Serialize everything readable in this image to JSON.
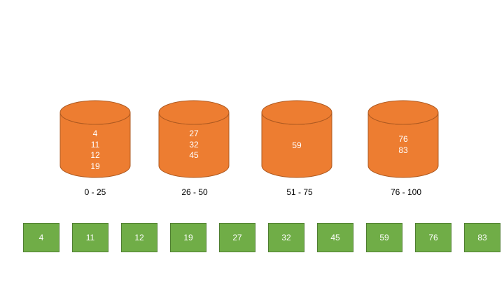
{
  "buckets": [
    {
      "range": "0 - 25",
      "values": [
        "4",
        "11",
        "12",
        "19"
      ]
    },
    {
      "range": "26 - 50",
      "values": [
        "27",
        "32",
        "45"
      ]
    },
    {
      "range": "51 - 75",
      "values": [
        "59"
      ]
    },
    {
      "range": "76 - 100",
      "values": [
        "76",
        "83"
      ]
    }
  ],
  "sorted": [
    "4",
    "11",
    "12",
    "19",
    "27",
    "32",
    "45",
    "59",
    "76",
    "83"
  ],
  "colors": {
    "bucket_fill": "#ed7d31",
    "bucket_stroke": "#ae5a21",
    "cell_fill": "#70ad47",
    "cell_stroke": "#507e32",
    "text_light": "#ffffff",
    "text_dark": "#000000"
  }
}
